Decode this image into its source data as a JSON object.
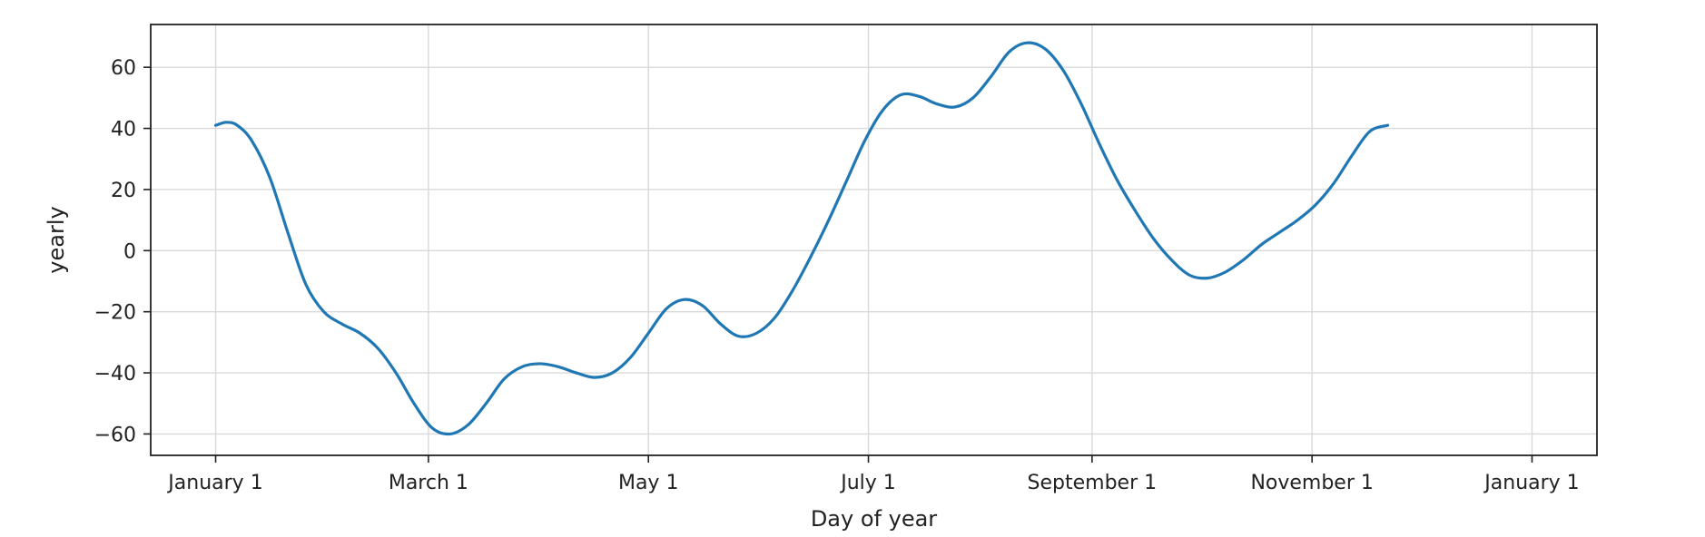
{
  "chart_data": {
    "type": "line",
    "xlabel": "Day of year",
    "ylabel": "yearly",
    "x_ticks": [
      {
        "label": "January 1",
        "value": 0
      },
      {
        "label": "March 1",
        "value": 59
      },
      {
        "label": "May 1",
        "value": 120
      },
      {
        "label": "July 1",
        "value": 181
      },
      {
        "label": "September 1",
        "value": 243
      },
      {
        "label": "November 1",
        "value": 304
      },
      {
        "label": "January 1",
        "value": 365
      }
    ],
    "y_ticks": [
      60,
      40,
      20,
      0,
      -20,
      -40,
      -60
    ],
    "xlim": [
      -18,
      383
    ],
    "ylim": [
      -67,
      74
    ],
    "grid": true,
    "series": [
      {
        "color": "#1f77b4",
        "x": [
          0,
          3,
          6,
          10,
          15,
          20,
          25,
          30,
          35,
          40,
          45,
          50,
          55,
          60,
          65,
          70,
          75,
          80,
          85,
          90,
          95,
          100,
          105,
          110,
          115,
          120,
          125,
          130,
          135,
          140,
          145,
          150,
          155,
          160,
          165,
          170,
          175,
          180,
          185,
          190,
          195,
          200,
          205,
          210,
          215,
          220,
          225,
          230,
          235,
          240,
          245,
          250,
          255,
          260,
          265,
          270,
          275,
          280,
          285,
          290,
          295,
          300,
          305,
          310,
          315,
          320,
          325,
          330,
          335,
          340,
          345,
          350,
          355,
          360,
          365
        ],
        "y": [
          41,
          42,
          41,
          36,
          24,
          6,
          -11,
          -20,
          -24,
          -27,
          -32,
          -40,
          -50,
          -58,
          -60,
          -57,
          -50,
          -42,
          -38,
          -37,
          -38,
          -40,
          -41.5,
          -40,
          -35,
          -27,
          -19,
          -16,
          -18,
          -24,
          -28,
          -27,
          -22,
          -13,
          -2,
          10,
          23,
          36,
          46,
          51,
          50.5,
          48,
          47,
          50,
          57,
          65,
          68,
          66,
          59,
          48,
          35,
          23,
          13,
          4,
          -3,
          -8,
          -9,
          -7,
          -3,
          2,
          6,
          10,
          15,
          22,
          31,
          39,
          41,
          null,
          null,
          null,
          null,
          null,
          null,
          null,
          null
        ]
      }
    ]
  }
}
